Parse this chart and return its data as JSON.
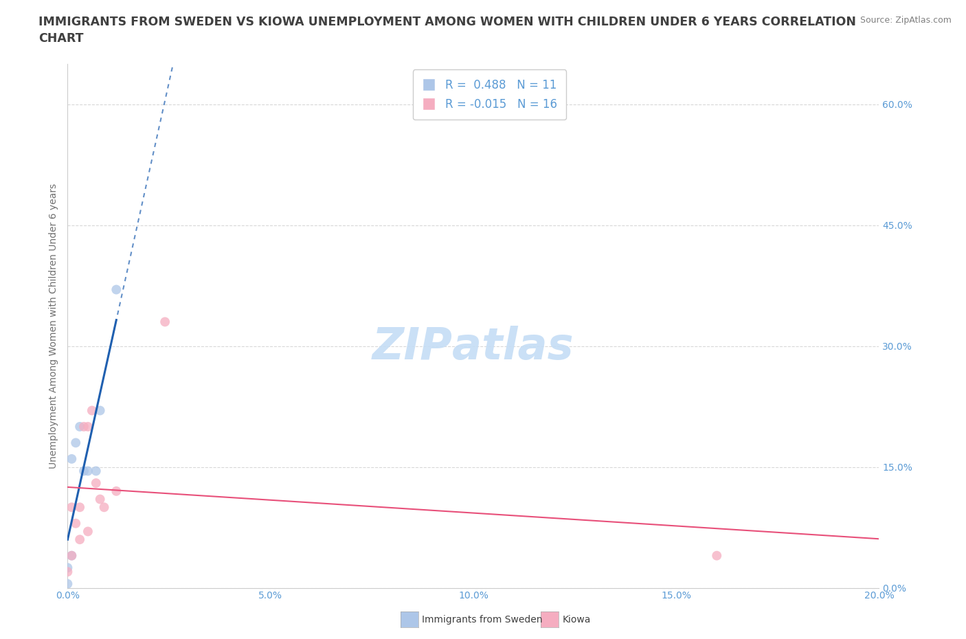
{
  "title": "IMMIGRANTS FROM SWEDEN VS KIOWA UNEMPLOYMENT AMONG WOMEN WITH CHILDREN UNDER 6 YEARS CORRELATION\nCHART",
  "source": "Source: ZipAtlas.com",
  "xlim": [
    0.0,
    0.2
  ],
  "ylim": [
    0.0,
    0.65
  ],
  "ylabel": "Unemployment Among Women with Children Under 6 years",
  "legend1_label": "Immigrants from Sweden",
  "legend2_label": "Kiowa",
  "R_sweden": 0.488,
  "N_sweden": 11,
  "R_kiowa": -0.015,
  "N_kiowa": 16,
  "sweden_color": "#adc6e8",
  "kiowa_color": "#f5adc0",
  "trendline_sweden_color": "#2060b0",
  "trendline_kiowa_color": "#e8507a",
  "watermark_color": "#c5ddf5",
  "background_color": "#ffffff",
  "grid_color": "#d8d8d8",
  "title_color": "#404040",
  "source_color": "#808080",
  "tick_color": "#5b9bd5",
  "ylabel_color": "#707070",
  "legend_text_color": "#404040",
  "legend_rv_color": "#5b9bd5",
  "title_fontsize": 12.5,
  "tick_fontsize": 10,
  "ylabel_fontsize": 10,
  "legend_fontsize": 12,
  "source_fontsize": 9,
  "marker_size": 100,
  "marker_alpha": 0.75,
  "sweden_points_x": [
    0.0,
    0.0,
    0.001,
    0.001,
    0.002,
    0.003,
    0.004,
    0.005,
    0.007,
    0.008,
    0.012
  ],
  "sweden_points_y": [
    0.005,
    0.025,
    0.04,
    0.16,
    0.18,
    0.2,
    0.145,
    0.145,
    0.145,
    0.22,
    0.37
  ],
  "kiowa_points_x": [
    0.0,
    0.001,
    0.001,
    0.002,
    0.003,
    0.003,
    0.004,
    0.005,
    0.005,
    0.006,
    0.007,
    0.008,
    0.009,
    0.012,
    0.024,
    0.16
  ],
  "kiowa_points_y": [
    0.02,
    0.04,
    0.1,
    0.08,
    0.06,
    0.1,
    0.2,
    0.07,
    0.2,
    0.22,
    0.13,
    0.11,
    0.1,
    0.12,
    0.33,
    0.04
  ],
  "x_tick_vals": [
    0.0,
    0.05,
    0.1,
    0.15,
    0.2
  ],
  "y_tick_vals": [
    0.0,
    0.15,
    0.3,
    0.45,
    0.6
  ]
}
